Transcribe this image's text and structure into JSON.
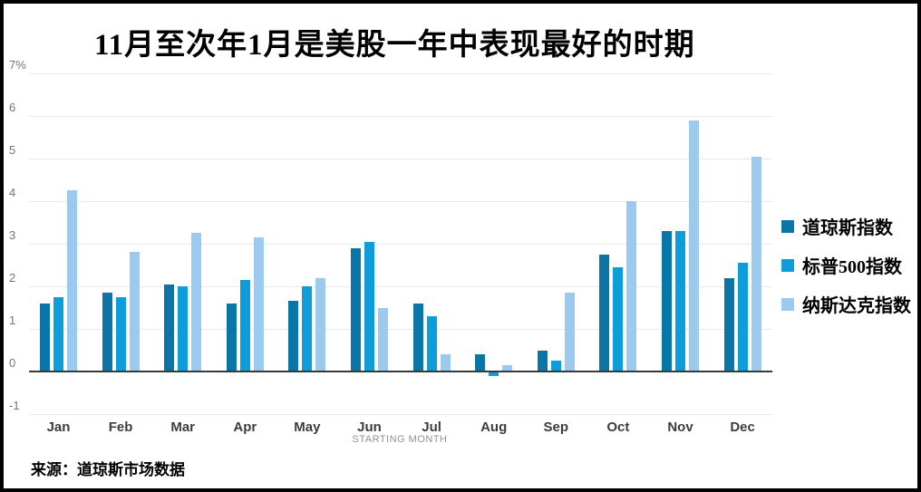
{
  "title": "11月至次年1月是美股一年中表现最好的时期",
  "source": "来源：道琼斯市场数据",
  "chart_data": {
    "type": "bar",
    "title": "11月至次年1月是美股一年中表现最好的时期",
    "categories": [
      "Jan",
      "Feb",
      "Mar",
      "Apr",
      "May",
      "Jun",
      "Jul",
      "Aug",
      "Sep",
      "Oct",
      "Nov",
      "Dec"
    ],
    "series": [
      {
        "name": "道琼斯指数",
        "color": "#0a76a8",
        "values": [
          1.6,
          1.85,
          2.05,
          1.6,
          1.65,
          2.9,
          1.6,
          0.4,
          0.5,
          2.75,
          3.3,
          2.2
        ]
      },
      {
        "name": "标普500指数",
        "color": "#0d9ddb",
        "values": [
          1.75,
          1.75,
          2.0,
          2.15,
          2.0,
          3.05,
          1.3,
          -0.1,
          0.25,
          2.45,
          3.3,
          2.55
        ]
      },
      {
        "name": "纳斯达克指数",
        "color": "#9cc9ee",
        "values": [
          4.25,
          2.8,
          3.25,
          3.15,
          2.2,
          1.5,
          0.4,
          0.15,
          1.85,
          4.0,
          5.9,
          5.05
        ]
      }
    ],
    "xlabel": "STARTING MONTH",
    "ylabel": "",
    "y_ticks": [
      "7%",
      "6",
      "5",
      "4",
      "3",
      "2",
      "1",
      "0",
      "-1"
    ],
    "ylim": [
      -1,
      7
    ],
    "grid": true,
    "legend_position": "right",
    "unit_suffix": "%"
  },
  "colors": {
    "axis_line": "#3a3a3a",
    "gridline": "#e9e9e9",
    "tick_text": "#757575",
    "month_text": "#3d3d3d",
    "frame": "#000000"
  }
}
